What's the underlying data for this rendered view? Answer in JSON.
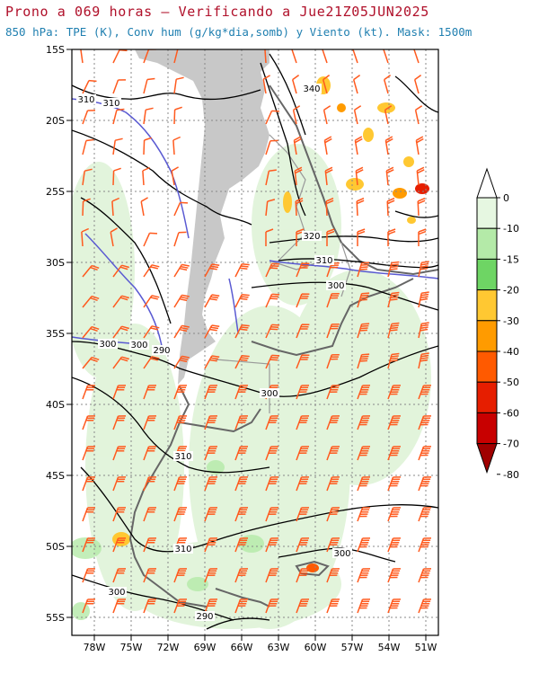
{
  "title": {
    "line1": "Prono a 069 horas — Verificando a Jue21Z05JUN2025",
    "line2": "850 hPa: TPE (K), Conv hum (g/kg*dia,somb) y Viento (kt). Mask: 1500m"
  },
  "map": {
    "lat_labels": [
      "15S",
      "20S",
      "25S",
      "30S",
      "35S",
      "40S",
      "45S",
      "50S",
      "55S"
    ],
    "lon_labels": [
      "78W",
      "75W",
      "72W",
      "69W",
      "66W",
      "63W",
      "60W",
      "57W",
      "54W",
      "51W"
    ],
    "grid": "dotted",
    "mask_color": "#c8c8c8",
    "wind_barb_color": "#ff5a1e",
    "tpe_contour_color": "#000000",
    "tpe310_contour_color": "#5a5ad2",
    "contour_labels": [
      {
        "text": "310",
        "color": "#5a5ad2"
      },
      {
        "text": "310",
        "color": "#000000"
      },
      {
        "text": "340",
        "color": "#000000"
      },
      {
        "text": "320",
        "color": "#000000"
      },
      {
        "text": "310",
        "color": "#000000"
      },
      {
        "text": "300",
        "color": "#000000"
      },
      {
        "text": "300",
        "color": "#000000"
      },
      {
        "text": "310",
        "color": "#5a5ad2"
      },
      {
        "text": "310",
        "color": "#000000"
      },
      {
        "text": "300",
        "color": "#000000"
      },
      {
        "text": "300",
        "color": "#000000"
      },
      {
        "text": "300",
        "color": "#000000"
      },
      {
        "text": "290",
        "color": "#000000"
      },
      {
        "text": "300",
        "color": "#000000"
      },
      {
        "text": "290",
        "color": "#000000"
      }
    ]
  },
  "colorbar": {
    "levels": [
      "0",
      "-10",
      "-15",
      "-20",
      "-30",
      "-40",
      "-50",
      "-60",
      "-70",
      "-80"
    ],
    "colors": [
      "#ffffff",
      "#e6f7e1",
      "#b4eaa8",
      "#6ed564",
      "#ffc832",
      "#ff9b00",
      "#ff5a00",
      "#e61e00",
      "#c80000",
      "#a00000"
    ]
  }
}
